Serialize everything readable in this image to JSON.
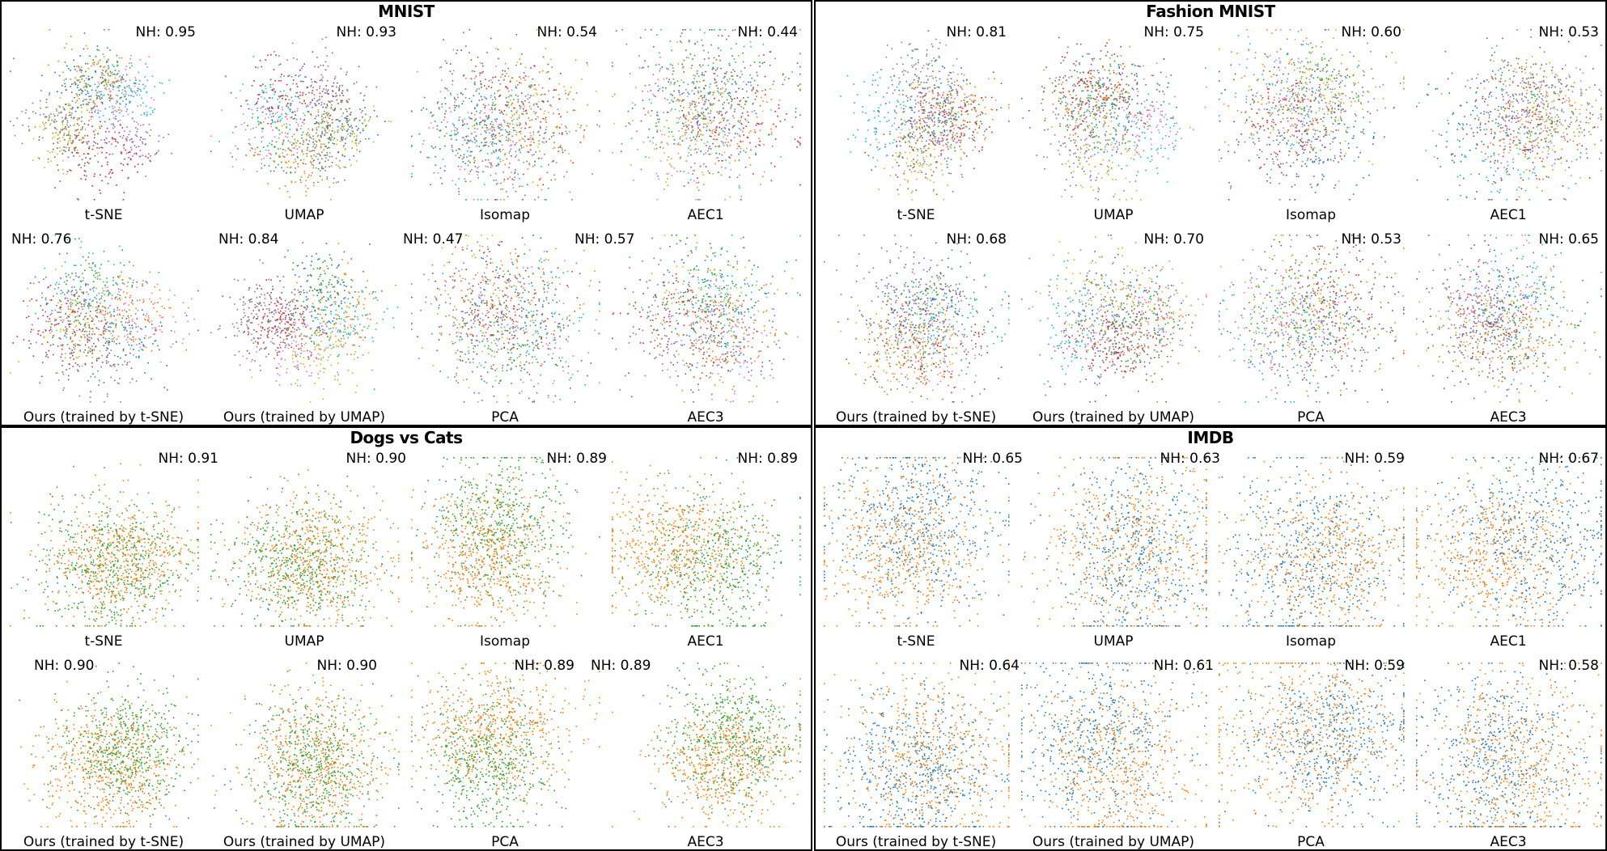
{
  "palette10": [
    "#1f77b4",
    "#ff7f0e",
    "#2ca02c",
    "#d62728",
    "#9467bd",
    "#8c564b",
    "#e377c2",
    "#7f7f7f",
    "#bcbd22",
    "#17becf"
  ],
  "palette2_dogs": [
    "#ff7f0e",
    "#2ca02c"
  ],
  "palette2_imdb": [
    "#1f77b4",
    "#ff7f0e"
  ],
  "chart_data": [
    {
      "type": "scatter",
      "title": "MNIST",
      "n_classes": 10,
      "plots": [
        {
          "method": "t-SNE",
          "nh_label": "NH: 0.95",
          "nh": 0.95
        },
        {
          "method": "UMAP",
          "nh_label": "NH: 0.93",
          "nh": 0.93
        },
        {
          "method": "Isomap",
          "nh_label": "NH: 0.54",
          "nh": 0.54
        },
        {
          "method": "AEC1",
          "nh_label": "NH: 0.44",
          "nh": 0.44
        },
        {
          "method": "Ours (trained by t-SNE)",
          "nh_label": "NH: 0.76",
          "nh": 0.76
        },
        {
          "method": "Ours (trained by UMAP)",
          "nh_label": "NH: 0.84",
          "nh": 0.84
        },
        {
          "method": "PCA",
          "nh_label": "NH: 0.47",
          "nh": 0.47
        },
        {
          "method": "AEC3",
          "nh_label": "NH: 0.57",
          "nh": 0.57
        }
      ]
    },
    {
      "type": "scatter",
      "title": "Fashion MNIST",
      "n_classes": 10,
      "plots": [
        {
          "method": "t-SNE",
          "nh_label": "NH: 0.81",
          "nh": 0.81
        },
        {
          "method": "UMAP",
          "nh_label": "NH: 0.75",
          "nh": 0.75
        },
        {
          "method": "Isomap",
          "nh_label": "NH: 0.60",
          "nh": 0.6
        },
        {
          "method": "AEC1",
          "nh_label": "NH: 0.53",
          "nh": 0.53
        },
        {
          "method": "Ours (trained by t-SNE)",
          "nh_label": "NH: 0.68",
          "nh": 0.68
        },
        {
          "method": "Ours (trained by UMAP)",
          "nh_label": "NH: 0.70",
          "nh": 0.7
        },
        {
          "method": "PCA",
          "nh_label": "NH: 0.53",
          "nh": 0.53
        },
        {
          "method": "AEC3",
          "nh_label": "NH: 0.65",
          "nh": 0.65
        }
      ]
    },
    {
      "type": "scatter",
      "title": "Dogs vs Cats",
      "n_classes": 2,
      "plots": [
        {
          "method": "t-SNE",
          "nh_label": "NH: 0.91",
          "nh": 0.91
        },
        {
          "method": "UMAP",
          "nh_label": "NH: 0.90",
          "nh": 0.9
        },
        {
          "method": "Isomap",
          "nh_label": "NH: 0.89",
          "nh": 0.89
        },
        {
          "method": "AEC1",
          "nh_label": "NH: 0.89",
          "nh": 0.89
        },
        {
          "method": "Ours (trained by t-SNE)",
          "nh_label": "NH: 0.90",
          "nh": 0.9
        },
        {
          "method": "Ours (trained by UMAP)",
          "nh_label": "NH: 0.90",
          "nh": 0.9
        },
        {
          "method": "PCA",
          "nh_label": "NH: 0.89",
          "nh": 0.89
        },
        {
          "method": "AEC3",
          "nh_label": "NH: 0.89",
          "nh": 0.89
        }
      ]
    },
    {
      "type": "scatter",
      "title": "IMDB",
      "n_classes": 2,
      "plots": [
        {
          "method": "t-SNE",
          "nh_label": "NH: 0.65",
          "nh": 0.65
        },
        {
          "method": "UMAP",
          "nh_label": "NH: 0.63",
          "nh": 0.63
        },
        {
          "method": "Isomap",
          "nh_label": "NH: 0.59",
          "nh": 0.59
        },
        {
          "method": "AEC1",
          "nh_label": "NH: 0.67",
          "nh": 0.67
        },
        {
          "method": "Ours (trained by t-SNE)",
          "nh_label": "NH: 0.64",
          "nh": 0.64
        },
        {
          "method": "Ours (trained by UMAP)",
          "nh_label": "NH: 0.61",
          "nh": 0.61
        },
        {
          "method": "PCA",
          "nh_label": "NH: 0.59",
          "nh": 0.59
        },
        {
          "method": "AEC3",
          "nh_label": "NH: 0.58",
          "nh": 0.58
        }
      ]
    }
  ]
}
